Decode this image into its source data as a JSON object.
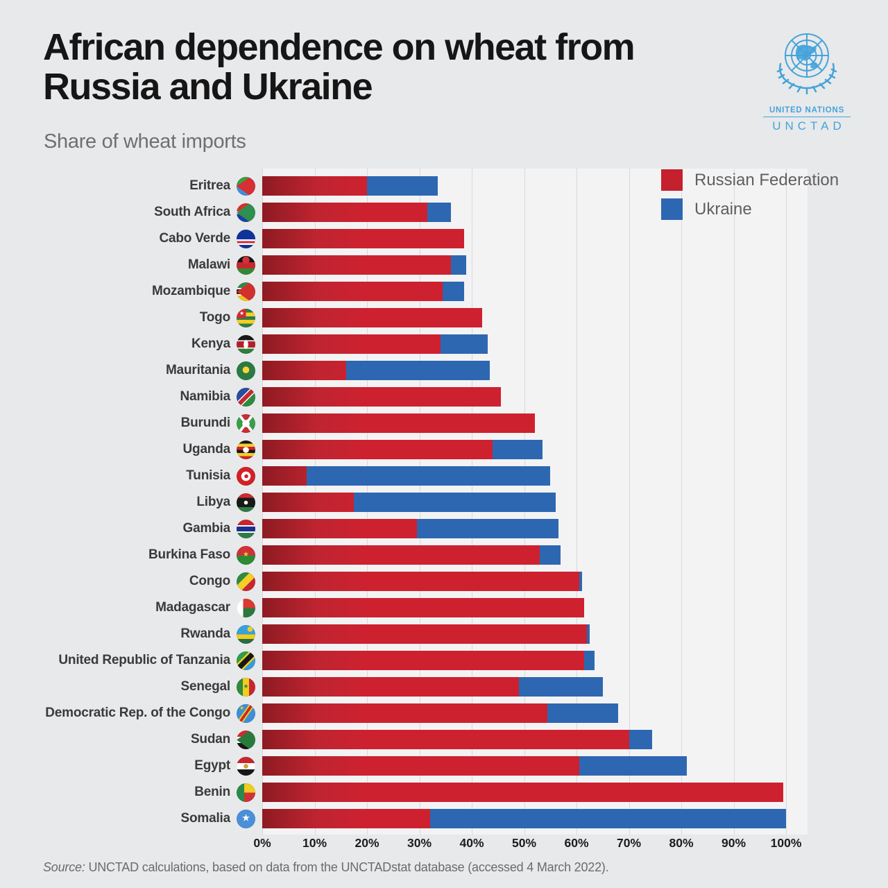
{
  "header": {
    "title_line1": "African dependence on wheat from",
    "title_line2": "Russia and Ukraine",
    "subtitle": "Share of wheat imports"
  },
  "logo": {
    "org": "UNITED NATIONS",
    "name": "UNCTAD"
  },
  "legend": [
    {
      "label": "Russian Federation",
      "color": "#c5202e"
    },
    {
      "label": "Ukraine",
      "color": "#2e67b1"
    }
  ],
  "colors": {
    "russia_red": "#ce2130",
    "russia_red_dark_edge": "#8e1b22",
    "ukraine_blue": "#2e67b1",
    "page_background": "#e8e9eb",
    "plot_background": "#f3f3f4",
    "gridline": "#d9d9dd",
    "unctad_blue": "#45a3da"
  },
  "source": {
    "prefix": "Source:",
    "text": " UNCTAD calculations, based on data from the UNCTADstat database (accessed 4 March 2022)."
  },
  "chart_data": {
    "type": "bar",
    "orientation": "horizontal",
    "stacked": true,
    "unit": "percent",
    "xlim": [
      0,
      100
    ],
    "grid": true,
    "legend_position": "top-right",
    "x_ticks": [
      "0%",
      "10%",
      "20%",
      "30%",
      "40%",
      "50%",
      "60%",
      "70%",
      "80%",
      "90%",
      "100%"
    ],
    "series_names": [
      "Russian Federation",
      "Ukraine"
    ],
    "rows": [
      {
        "country": "Eritrea",
        "flag": "eritrea",
        "russian_federation": 20,
        "ukraine": 13.5
      },
      {
        "country": "South Africa",
        "flag": "southafrica",
        "russian_federation": 31.5,
        "ukraine": 4.5
      },
      {
        "country": "Cabo Verde",
        "flag": "caboverde",
        "russian_federation": 38.5,
        "ukraine": 0
      },
      {
        "country": "Malawi",
        "flag": "malawi",
        "russian_federation": 36,
        "ukraine": 3
      },
      {
        "country": "Mozambique",
        "flag": "mozambique",
        "russian_federation": 34.5,
        "ukraine": 4
      },
      {
        "country": "Togo",
        "flag": "togo",
        "russian_federation": 42,
        "ukraine": 0
      },
      {
        "country": "Kenya",
        "flag": "kenya",
        "russian_federation": 34,
        "ukraine": 9
      },
      {
        "country": "Mauritania",
        "flag": "mauritania",
        "russian_federation": 16,
        "ukraine": 27.5
      },
      {
        "country": "Namibia",
        "flag": "namibia",
        "russian_federation": 45.5,
        "ukraine": 0
      },
      {
        "country": "Burundi",
        "flag": "burundi",
        "russian_federation": 52,
        "ukraine": 0
      },
      {
        "country": "Uganda",
        "flag": "uganda",
        "russian_federation": 44,
        "ukraine": 9.5
      },
      {
        "country": "Tunisia",
        "flag": "tunisia",
        "russian_federation": 8.5,
        "ukraine": 46.5
      },
      {
        "country": "Libya",
        "flag": "libya",
        "russian_federation": 17.5,
        "ukraine": 38.5
      },
      {
        "country": "Gambia",
        "flag": "gambia",
        "russian_federation": 29.5,
        "ukraine": 27
      },
      {
        "country": "Burkina Faso",
        "flag": "burkinafaso",
        "russian_federation": 53,
        "ukraine": 4
      },
      {
        "country": "Congo",
        "flag": "congo",
        "russian_federation": 60.5,
        "ukraine": 0.5
      },
      {
        "country": "Madagascar",
        "flag": "madagascar",
        "russian_federation": 61.5,
        "ukraine": 0
      },
      {
        "country": "Rwanda",
        "flag": "rwanda",
        "russian_federation": 62,
        "ukraine": 0.5
      },
      {
        "country": "United Republic of Tanzania",
        "flag": "tanzania",
        "russian_federation": 61.5,
        "ukraine": 2
      },
      {
        "country": "Senegal",
        "flag": "senegal",
        "russian_federation": 49,
        "ukraine": 16
      },
      {
        "country": "Democratic Rep. of the Congo",
        "flag": "drc",
        "russian_federation": 54.5,
        "ukraine": 13.5
      },
      {
        "country": "Sudan",
        "flag": "sudan",
        "russian_federation": 70,
        "ukraine": 4.5
      },
      {
        "country": "Egypt",
        "flag": "egypt",
        "russian_federation": 60.5,
        "ukraine": 20.5
      },
      {
        "country": "Benin",
        "flag": "benin",
        "russian_federation": 99.5,
        "ukraine": 0
      },
      {
        "country": "Somalia",
        "flag": "somalia",
        "russian_federation": 32,
        "ukraine": 68
      }
    ]
  }
}
